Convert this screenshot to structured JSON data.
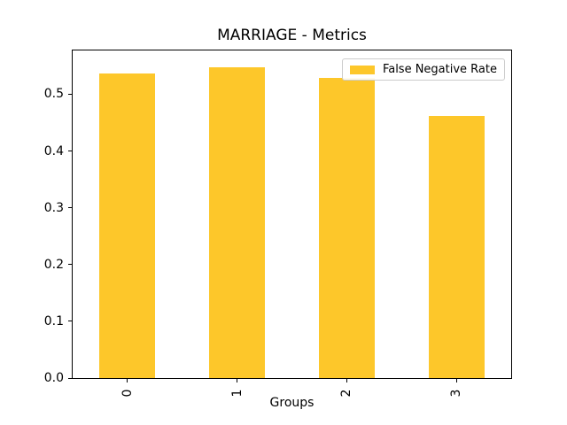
{
  "chart_data": {
    "type": "bar",
    "title": "MARRIAGE - Metrics",
    "xlabel": "Groups",
    "ylabel": "",
    "categories": [
      "0",
      "1",
      "2",
      "3"
    ],
    "series": [
      {
        "name": "False Negative Rate",
        "color": "#FDC72A",
        "values": [
          0.536,
          0.548,
          0.528,
          0.461
        ]
      }
    ],
    "ylim": [
      0,
      0.577
    ],
    "yticks": [
      0.0,
      0.1,
      0.2,
      0.3,
      0.4,
      0.5
    ],
    "x_tick_rotation_deg": 90,
    "grid": false,
    "legend_position": "upper right"
  }
}
